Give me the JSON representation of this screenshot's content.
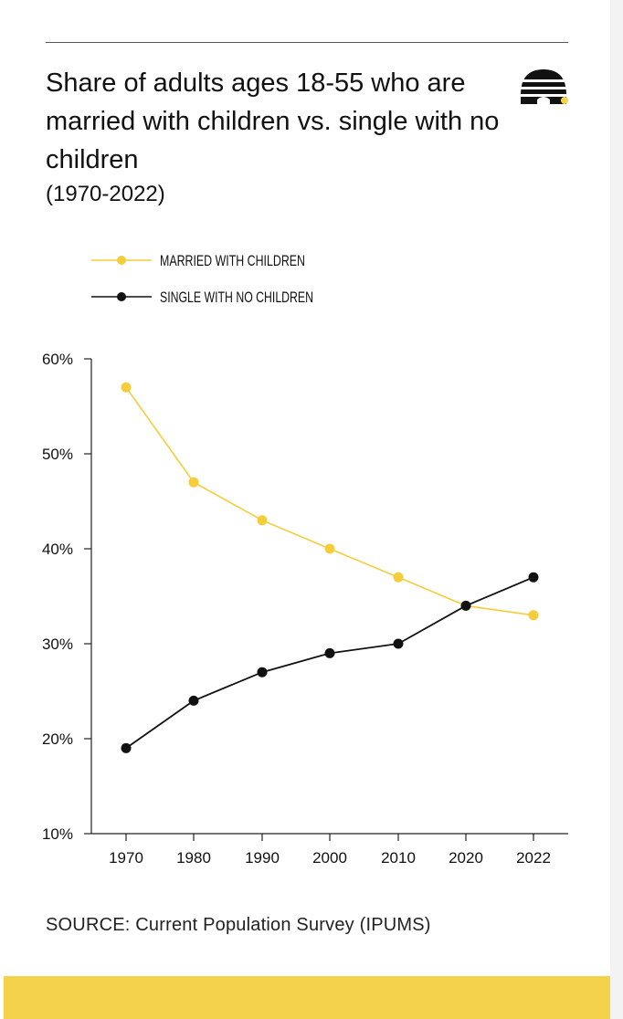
{
  "header": {
    "title": "Share of adults ages 18-55 who are married with children vs. single with no children",
    "subtitle": "(1970-2022)"
  },
  "logo": {
    "icon": "beehive-icon",
    "colors": {
      "hive": "#111111",
      "dot": "#f5d24b"
    }
  },
  "chart_data": {
    "type": "line",
    "title": "Share of adults ages 18-55 who are married with children vs. single with no children",
    "subtitle": "(1970-2022)",
    "categories": [
      "1970",
      "1980",
      "1990",
      "2000",
      "2010",
      "2020",
      "2022"
    ],
    "series": [
      {
        "name": "MARRIED WITH CHILDREN",
        "color": "#f5cd3a",
        "values": [
          57,
          47,
          43,
          40,
          37,
          34,
          33
        ]
      },
      {
        "name": "SINGLE WITH NO CHILDREN",
        "color": "#111111",
        "values": [
          19,
          24,
          27,
          29,
          30,
          34,
          37
        ]
      }
    ],
    "yticks": [
      "60%",
      "50%",
      "40%",
      "30%",
      "20%",
      "10%"
    ],
    "ytick_values": [
      60,
      50,
      40,
      30,
      20,
      10
    ],
    "ylim": [
      10,
      60
    ],
    "xlabel": "",
    "ylabel": "",
    "grid": false,
    "legend_position": "top-left"
  },
  "footer": {
    "source": "SOURCE: Current Population Survey (IPUMS)",
    "band_color": "#f5d24b"
  }
}
